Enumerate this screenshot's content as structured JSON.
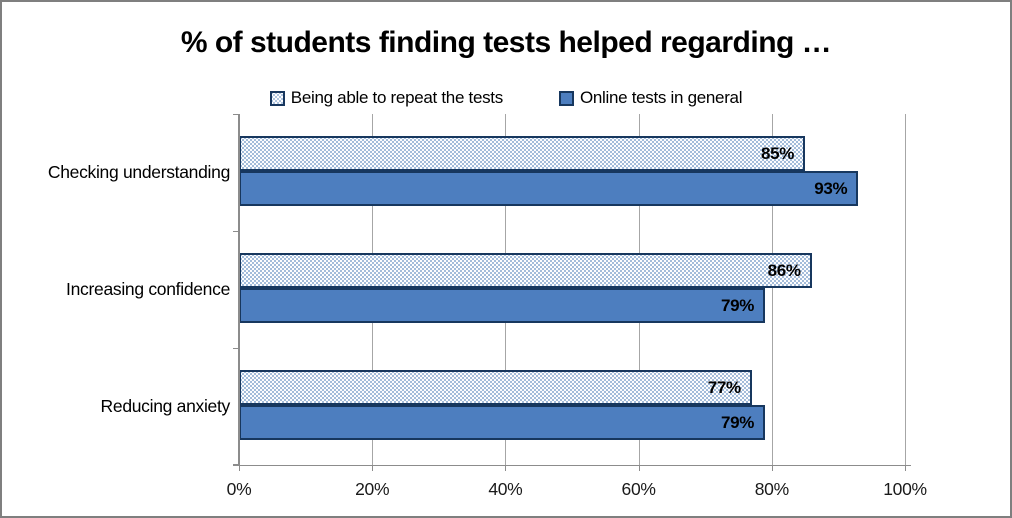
{
  "chart_data": {
    "type": "bar",
    "orientation": "horizontal",
    "title": "% of students finding tests helped regarding …",
    "categories": [
      "Checking understanding",
      "Increasing confidence",
      "Reducing anxiety"
    ],
    "series": [
      {
        "name": "Being able to repeat the tests",
        "values": [
          85,
          86,
          77
        ],
        "data_labels": [
          "85%",
          "86%",
          "77%"
        ],
        "fill": "pattern-dotted",
        "fill_color": "#dce6f2",
        "pattern_dot_color": "#a3bcda",
        "border_color": "#17375e"
      },
      {
        "name": "Online tests in general",
        "values": [
          93,
          79,
          79
        ],
        "data_labels": [
          "93%",
          "79%",
          "79%"
        ],
        "fill": "solid",
        "fill_color": "#4d7ebf",
        "border_color": "#17375e"
      }
    ],
    "x_axis": {
      "min": 0,
      "max": 100,
      "tick_step": 20,
      "tick_labels": [
        "0%",
        "20%",
        "40%",
        "60%",
        "80%",
        "100%"
      ],
      "gridlines": true
    },
    "legend": {
      "position": "top",
      "entries": [
        "Being able to repeat the tests",
        "Online tests in general"
      ]
    },
    "colors": {
      "gridline": "#a6a6a6",
      "axis": "#8c8c8c",
      "text": "#000000",
      "frame_border": "#7f7f7f",
      "background": "#ffffff"
    }
  }
}
